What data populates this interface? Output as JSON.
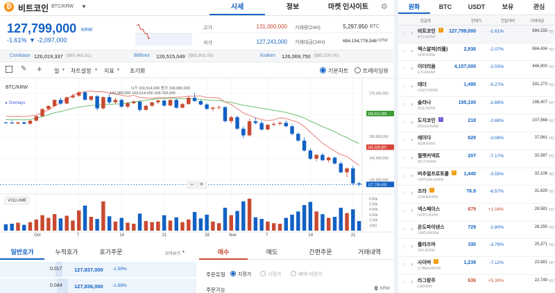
{
  "header": {
    "coin_name": "비트코인",
    "pair": "BTC/KRW",
    "tabs": [
      "시세",
      "정보",
      "마켓 인사이트"
    ],
    "price": "127,799,000",
    "price_unit": "KRW",
    "change_pct": "-1.61%",
    "change_amt": "▼ -2,097,000",
    "high_label": "고가",
    "high_value": "131,000,000",
    "low_label": "저가",
    "low_value": "127,241,000",
    "vol_label": "거래량(24H)",
    "vol_value": "5,297.850",
    "vol_unit": "BTC",
    "amt_label": "거래대금(24H)",
    "amt_value": "694,154,778,548",
    "amt_unit": "KRW"
  },
  "exchanges": [
    {
      "name": "Coinbase",
      "price": "126,019,337",
      "usd": "($85,465.81)"
    },
    {
      "name": "Bitfinex",
      "price": "126,515,049",
      "usd": "($85,802.00)"
    },
    {
      "name": "Kraken",
      "price": "126,069,750",
      "usd": "($85,500.00)"
    }
  ],
  "toolbar": {
    "interval": "일",
    "chart_settings": "차트설정",
    "indicator": "지표",
    "reset": "초기화",
    "basic_chart": "기본차트",
    "tradingview": "트레이딩뷰"
  },
  "chart_info": {
    "title": "BTC/KRW",
    "overlays": "▸ Overlays",
    "ohlc_text": "시가 169,514,000  종가 168,980,000",
    "ohlc_text2": "168,980,000   169,514,000   168,793,000",
    "volume_label": "VOLUME",
    "zoom_minus": "−",
    "zoom_plus": "+"
  },
  "chart_data": {
    "type": "candlestick",
    "price_axis": [
      "170,000,000",
      "160,000,000",
      "150,000,000",
      "140,000,000",
      "130,000,000"
    ],
    "price_ylim": [
      125000000,
      175000000
    ],
    "price_tags": [
      {
        "label": "160,611,580",
        "value": 160611580,
        "color": "#3f9c35"
      },
      {
        "label": "145,028,887",
        "value": 145028887,
        "color": "#d9453a"
      },
      {
        "label": "127,799,000",
        "value": 127799000,
        "color": "#1261c4"
      }
    ],
    "volume_axis": [
      "6.00k",
      "5.00k",
      "4.00k",
      "3.00k",
      "2.00k",
      "1000"
    ],
    "volume_ylim": [
      0,
      6500
    ],
    "x_labels": [
      {
        "label": "Oct",
        "index": 5
      },
      {
        "label": "7",
        "index": 12
      },
      {
        "label": "14",
        "index": 19
      },
      {
        "label": "21",
        "index": 26
      },
      {
        "label": "28",
        "index": 33
      },
      {
        "label": "Nov",
        "index": 37
      },
      {
        "label": "7",
        "index": 43
      },
      {
        "label": "14",
        "index": 50
      },
      {
        "label": "21",
        "index": 57
      }
    ],
    "candles": [
      [
        156.5,
        156.8,
        155.8,
        156.4,
        1200
      ],
      [
        156.4,
        157.2,
        155.9,
        156.0,
        1300
      ],
      [
        156.0,
        156.9,
        155.6,
        156.5,
        1500
      ],
      [
        156.5,
        157.0,
        155.8,
        155.9,
        1100
      ],
      [
        155.9,
        157.5,
        155.5,
        157.3,
        1600
      ],
      [
        157.3,
        159.6,
        157.0,
        159.4,
        2100
      ],
      [
        159.4,
        163.0,
        159.0,
        162.7,
        2900
      ],
      [
        162.7,
        164.5,
        162.0,
        164.1,
        2400
      ],
      [
        164.1,
        167.2,
        163.8,
        166.9,
        3100
      ],
      [
        166.9,
        168.0,
        164.5,
        165.2,
        2300
      ],
      [
        165.2,
        168.5,
        165.0,
        168.1,
        2800
      ],
      [
        168.1,
        169.8,
        167.5,
        168.9,
        1900
      ],
      [
        168.9,
        171.0,
        168.2,
        170.4,
        3800
      ],
      [
        170.4,
        171.0,
        166.5,
        167.0,
        4700
      ],
      [
        167.0,
        168.9,
        166.2,
        168.6,
        2600
      ],
      [
        168.6,
        169.2,
        162.0,
        163.0,
        2200
      ],
      [
        163.0,
        168.5,
        162.5,
        168.2,
        5500
      ],
      [
        168.2,
        169.5,
        165.0,
        165.8,
        2700
      ],
      [
        165.8,
        167.9,
        165.2,
        166.9,
        1700
      ],
      [
        166.9,
        167.5,
        163.2,
        163.8,
        2400
      ],
      [
        163.8,
        166.0,
        163.0,
        165.4,
        1500
      ],
      [
        165.4,
        166.8,
        164.9,
        166.1,
        1300
      ],
      [
        166.1,
        166.7,
        161.5,
        162.3,
        3200
      ],
      [
        162.3,
        164.6,
        162.0,
        164.2,
        1800
      ],
      [
        164.2,
        166.0,
        163.6,
        165.8,
        1600
      ],
      [
        165.8,
        167.3,
        165.0,
        166.6,
        1700
      ],
      [
        166.6,
        167.0,
        163.8,
        164.3,
        2900
      ],
      [
        164.3,
        167.1,
        164.0,
        166.9,
        1900
      ],
      [
        166.9,
        167.4,
        162.9,
        163.3,
        2500
      ],
      [
        163.3,
        165.6,
        163.0,
        165.0,
        1600
      ],
      [
        165.0,
        168.6,
        164.6,
        167.9,
        2100
      ],
      [
        167.9,
        170.2,
        166.0,
        166.4,
        3500
      ],
      [
        166.4,
        166.9,
        164.3,
        164.8,
        2300
      ],
      [
        164.8,
        165.5,
        162.2,
        162.8,
        3000
      ],
      [
        162.8,
        163.8,
        161.7,
        163.3,
        1700
      ],
      [
        163.3,
        164.2,
        162.5,
        163.6,
        1400
      ],
      [
        163.6,
        164.0,
        156.5,
        157.1,
        4300
      ],
      [
        157.1,
        159.6,
        156.0,
        158.9,
        2900
      ],
      [
        158.9,
        159.6,
        153.0,
        153.6,
        3700
      ],
      [
        153.6,
        154.7,
        149.2,
        150.5,
        5500
      ],
      [
        150.5,
        158.2,
        150.0,
        157.0,
        6000
      ],
      [
        157.0,
        158.8,
        155.4,
        156.2,
        2500
      ],
      [
        156.2,
        157.4,
        152.7,
        153.2,
        2200
      ],
      [
        153.2,
        155.8,
        152.8,
        155.4,
        1700
      ],
      [
        155.4,
        156.6,
        154.7,
        155.8,
        1400
      ],
      [
        155.8,
        157.0,
        155.2,
        156.3,
        1300
      ],
      [
        156.3,
        157.5,
        154.4,
        154.7,
        2400
      ],
      [
        154.7,
        155.6,
        150.6,
        151.2,
        3000
      ],
      [
        151.2,
        152.0,
        147.5,
        148.1,
        3600
      ],
      [
        148.1,
        149.6,
        143.0,
        143.5,
        4800
      ],
      [
        143.5,
        144.6,
        139.0,
        139.7,
        5400
      ],
      [
        139.7,
        141.8,
        138.5,
        141.5,
        3600
      ],
      [
        141.5,
        142.3,
        138.6,
        139.0,
        3100
      ],
      [
        139.0,
        140.8,
        137.9,
        140.2,
        2400
      ],
      [
        140.2,
        140.7,
        137.0,
        137.5,
        2600
      ],
      [
        137.5,
        138.5,
        133.0,
        133.4,
        4300
      ],
      [
        133.4,
        135.8,
        131.0,
        135.2,
        3300
      ],
      [
        135.2,
        136.3,
        127.4,
        128.3,
        4000
      ],
      [
        128.3,
        129.0,
        126.9,
        127.8,
        1800
      ]
    ]
  },
  "orderbook": {
    "tabs": [
      "일반호가",
      "누적호가",
      "호가주문"
    ],
    "view_label": "모아보기",
    "rows": [
      {
        "qty": "0.017",
        "price": "127,837,000",
        "pct": "-1.59%"
      },
      {
        "qty": "0.044",
        "price": "127,836,000",
        "pct": "-1.59%"
      }
    ]
  },
  "order_form": {
    "tabs": [
      "매수",
      "매도",
      "간편주문",
      "거래내역"
    ],
    "type_label": "주문유형",
    "type_options": [
      "지정가",
      "시장가",
      "예약-지정가"
    ],
    "avail_label": "주문가능",
    "avail_value": "0",
    "avail_unit": "KRW"
  },
  "market": {
    "tabs": [
      "원화",
      "BTC",
      "USDT",
      "보유",
      "관심"
    ],
    "cols": [
      "한글명",
      "현재가",
      "전일대비",
      "거래대금"
    ],
    "volume_unit": "백만",
    "coins": [
      {
        "name": "비트코인",
        "symbol": "BTC/KRW",
        "price": "127,799,000",
        "change": "-1.61%",
        "volume": "694,155",
        "dir": "down",
        "badge": "orange"
      },
      {
        "name": "엑스알피(리플)",
        "symbol": "XRP/KRW",
        "price": "2,936",
        "change": "-2.07%",
        "volume": "684,434",
        "dir": "down",
        "badge": ""
      },
      {
        "name": "이더리움",
        "symbol": "ETH/KRW",
        "price": "4,157,000",
        "change": "-2.03%",
        "volume": "446,900",
        "dir": "down",
        "badge": ""
      },
      {
        "name": "테더",
        "symbol": "USDT/KRW",
        "price": "1,495",
        "change": "-0.27%",
        "volume": "331,273",
        "dir": "down",
        "badge": ""
      },
      {
        "name": "솔라나",
        "symbol": "SOL/KRW",
        "price": "195,100",
        "change": "-2.69%",
        "volume": "198,407",
        "dir": "down",
        "badge": ""
      },
      {
        "name": "도지코인",
        "symbol": "DOGE/KRW",
        "price": "218",
        "change": "-2.68%",
        "volume": "107,568",
        "dir": "down",
        "badge": "purple"
      },
      {
        "name": "에이다",
        "symbol": "ADA/KRW",
        "price": "629",
        "change": "-3.08%",
        "volume": "37,961",
        "dir": "down",
        "badge": ""
      },
      {
        "name": "월렛커넥트",
        "symbol": "WCT/KRW",
        "price": "207",
        "change": "-7.17%",
        "volume": "32,987",
        "dir": "down",
        "badge": ""
      },
      {
        "name": "버추얼프로토콜",
        "symbol": "VIRTUAL/KRW",
        "price": "1,440",
        "change": "-3.55%",
        "volume": "32,106",
        "dir": "down",
        "badge": "orange"
      },
      {
        "name": "조라",
        "symbol": "ZORA/KRW",
        "price": "76.8",
        "change": "-6.57%",
        "volume": "31,829",
        "dir": "down",
        "badge": "orange"
      },
      {
        "name": "넥스페이스",
        "symbol": "NXPC/KRW",
        "price": "679",
        "change": "+1.04%",
        "volume": "28,581",
        "dir": "up",
        "badge": ""
      },
      {
        "name": "온도파이낸스",
        "symbol": "ONDO/KRW",
        "price": "729",
        "change": "-2.80%",
        "volume": "26,250",
        "dir": "down",
        "badge": ""
      },
      {
        "name": "플라즈마",
        "symbol": "XPL/KRW",
        "price": "330",
        "change": "-3.79%",
        "volume": "25,371",
        "dir": "down",
        "badge": ""
      },
      {
        "name": "사이버",
        "symbol": "CYBER/KRW",
        "price": "1,239",
        "change": "-7.12%",
        "volume": "23,981",
        "dir": "down",
        "badge": "orange"
      },
      {
        "name": "라그랑주",
        "symbol": "LA/KRW",
        "price": "636",
        "change": "+5.30%",
        "volume": "22,749",
        "dir": "up",
        "badge": ""
      }
    ]
  },
  "colors": {
    "accent": "#1261c4",
    "up": "#c84a31",
    "down": "#1261c4",
    "ma_green": "#5cb85c",
    "ma_red": "#e8716a"
  }
}
